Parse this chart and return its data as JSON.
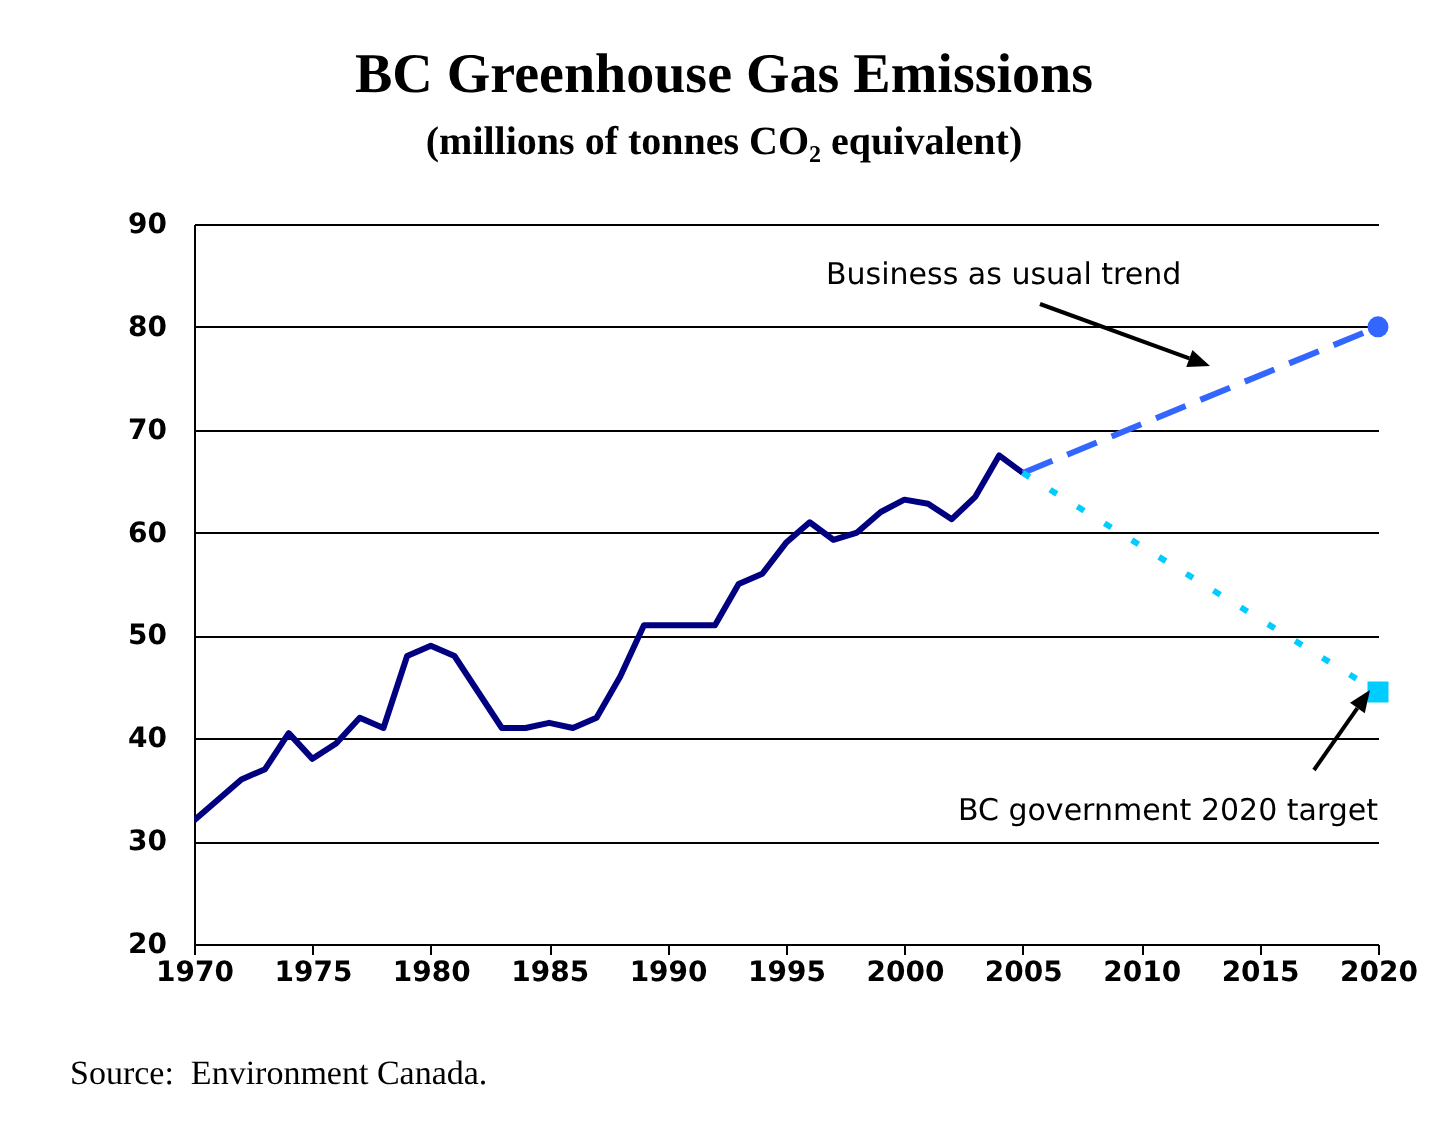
{
  "chart_data": {
    "type": "line",
    "title": "BC Greenhouse Gas Emissions",
    "subtitle": "(millions of tonnes CO₂ equivalent)",
    "xlim": [
      1970,
      2020
    ],
    "xticks": [
      1970,
      1975,
      1980,
      1985,
      1990,
      1995,
      2000,
      2005,
      2010,
      2015,
      2020
    ],
    "ylim": [
      20,
      90
    ],
    "yticks": [
      20,
      30,
      40,
      50,
      60,
      70,
      80,
      90
    ],
    "grid": "y",
    "series": [
      {
        "color": "#000080",
        "line_style": "solid",
        "marker": "none",
        "x": [
          1970,
          1971,
          1972,
          1973,
          1974,
          1975,
          1976,
          1977,
          1978,
          1979,
          1980,
          1981,
          1982,
          1983,
          1984,
          1985,
          1986,
          1987,
          1988,
          1989,
          1990,
          1991,
          1992,
          1993,
          1994,
          1995,
          1996,
          1997,
          1998,
          1999,
          2000,
          2001,
          2002,
          2003,
          2004,
          2005
        ],
        "values": [
          32,
          34,
          36,
          37,
          40.5,
          38,
          39.5,
          42,
          41,
          48,
          49,
          48,
          44.5,
          41,
          41,
          41.5,
          41,
          42,
          46,
          51,
          51,
          51,
          51,
          55,
          56,
          59,
          61,
          59.3,
          60,
          62,
          63.2,
          62.8,
          61.3,
          63.5,
          67.5,
          65.8
        ]
      },
      {
        "color": "#3366ff",
        "line_style": "dashed",
        "marker": "circle",
        "x": [
          2005,
          2020
        ],
        "values": [
          65.8,
          80
        ]
      },
      {
        "color": "#00ccff",
        "line_style": "dotted",
        "marker": "square",
        "x": [
          2005,
          2020
        ],
        "values": [
          65.8,
          44.5
        ]
      }
    ],
    "annotations": [
      "Business as usual trend",
      "BC government 2020 target",
      "Source:  Environment Canada."
    ]
  }
}
